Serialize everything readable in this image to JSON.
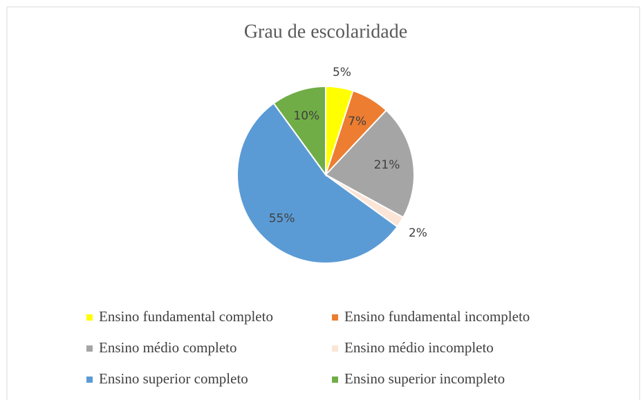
{
  "chart_data": {
    "type": "pie",
    "title": "Grau de escolaridade",
    "categories": [
      "Ensino fundamental completo",
      "Ensino fundamental incompleto",
      "Ensino médio completo",
      "Ensino médio incompleto",
      "Ensino superior completo",
      "Ensino superior incompleto"
    ],
    "values": [
      5,
      7,
      21,
      2,
      55,
      10
    ],
    "value_labels": [
      "5%",
      "7%",
      "21%",
      "2%",
      "55%",
      "10%"
    ],
    "colors": [
      "#ffff00",
      "#ed7d31",
      "#a5a5a5",
      "#fbe5d6",
      "#5b9bd5",
      "#70ad47"
    ],
    "legend": "bottom"
  }
}
